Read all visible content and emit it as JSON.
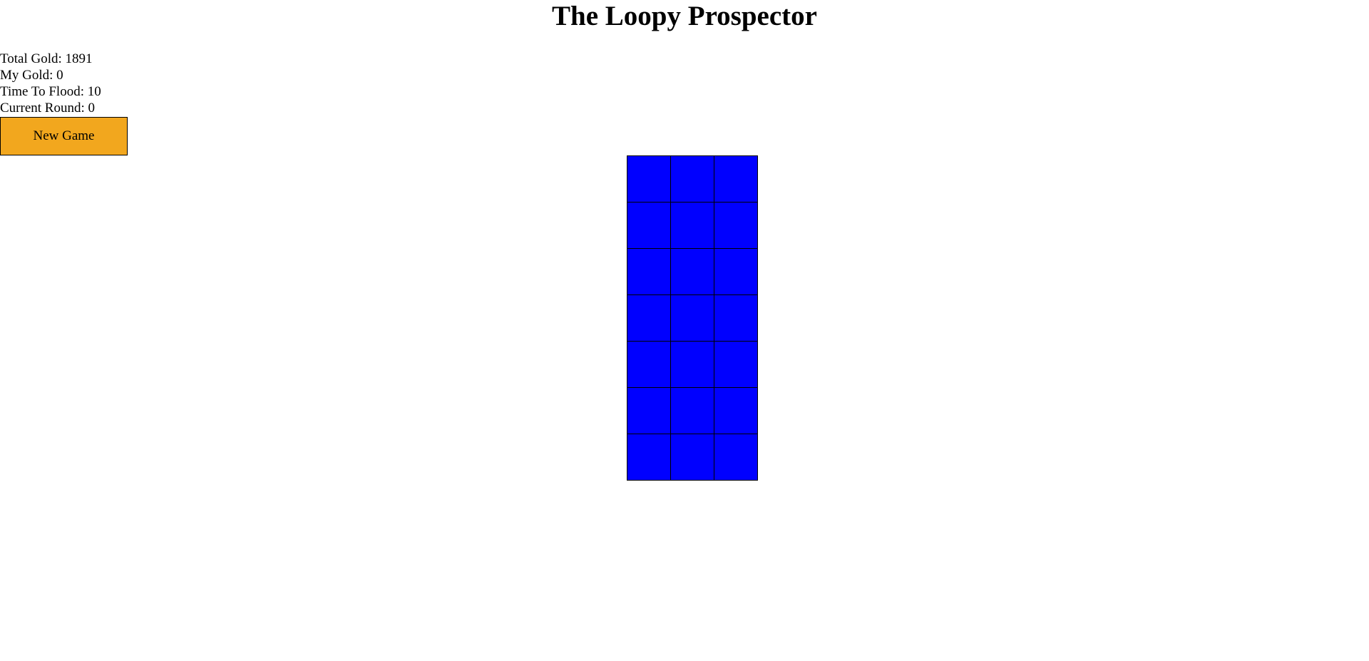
{
  "title": "The Loopy Prospector",
  "stats": {
    "total_gold": "Total Gold: 1891",
    "my_gold": "My Gold: 0",
    "time_to_flood": "Time To Flood: 10",
    "current_round": "Current Round: 0"
  },
  "new_game_label": "New Game",
  "colors": {
    "button": "#f2a71e",
    "water": "#0000ff"
  },
  "board": {
    "columns": 3,
    "rows": [
      [
        "water",
        "water",
        "water"
      ],
      [
        "water",
        "water",
        "water"
      ],
      [
        "water",
        "water",
        "water"
      ],
      [
        "water",
        "water",
        "water"
      ],
      [
        "water",
        "water",
        "water"
      ],
      [
        "water",
        "water",
        "water"
      ],
      [
        "water",
        "water",
        "water"
      ]
    ]
  }
}
